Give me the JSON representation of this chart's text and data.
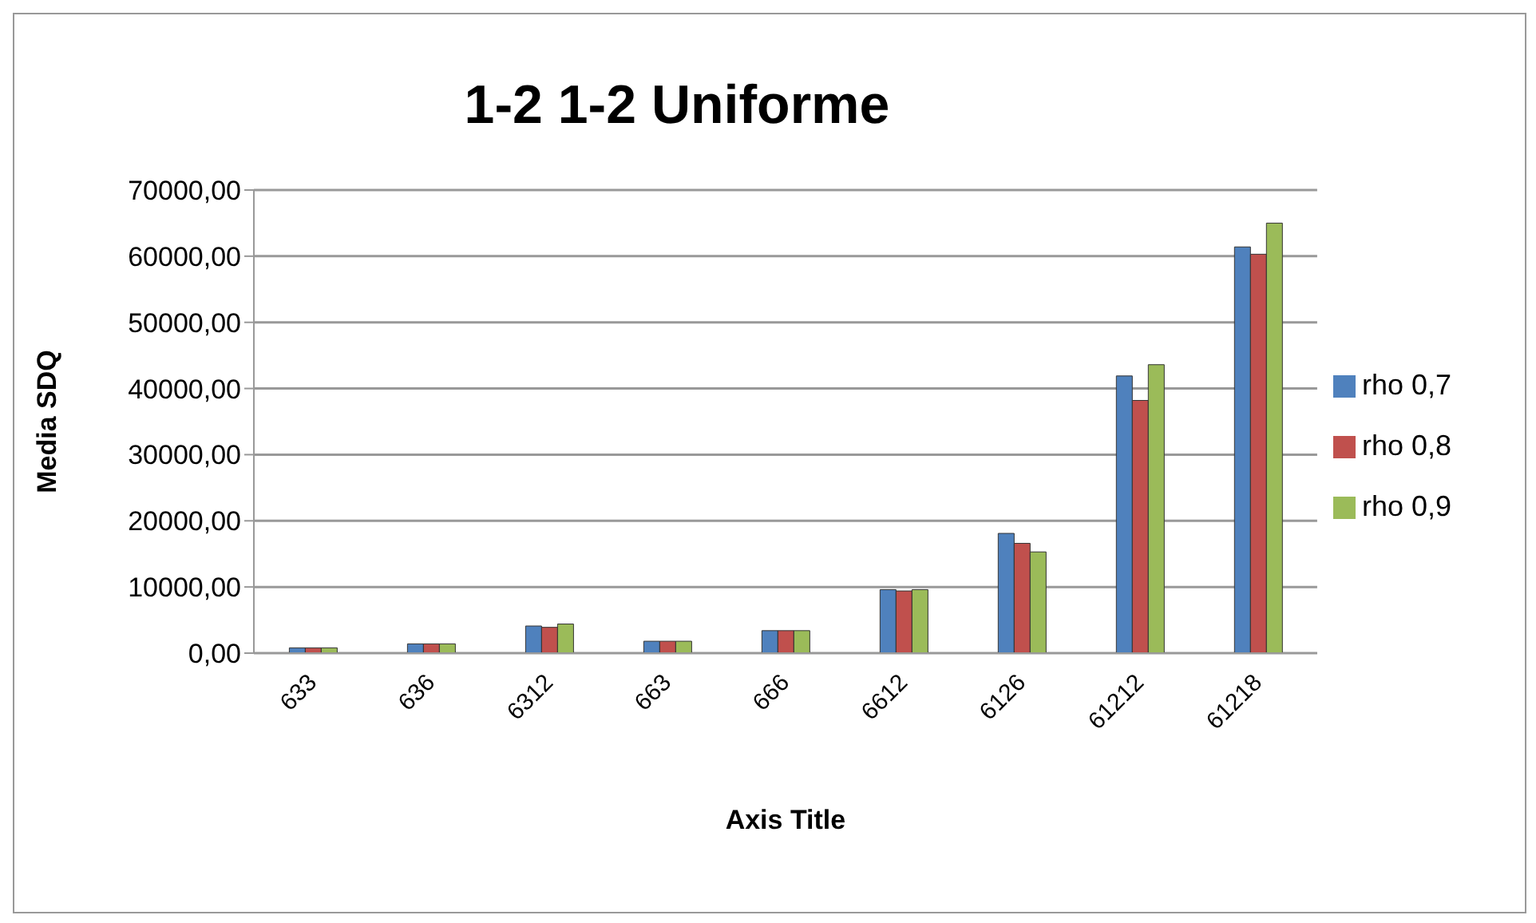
{
  "chart_data": {
    "type": "bar",
    "title": "1-2 1-2 Uniforme",
    "xlabel": "Axis Title",
    "ylabel": "Media SDQ",
    "categories": [
      "633",
      "636",
      "6312",
      "663",
      "666",
      "6612",
      "6126",
      "61212",
      "61218"
    ],
    "series": [
      {
        "name": "rho 0,7",
        "color": "#4f81bd",
        "values": [
          800,
          1400,
          4100,
          1800,
          3400,
          9600,
          18100,
          41900,
          61400
        ]
      },
      {
        "name": "rho 0,8",
        "color": "#c0504d",
        "values": [
          800,
          1400,
          3900,
          1800,
          3400,
          9400,
          16600,
          38200,
          60300
        ]
      },
      {
        "name": "rho 0,9",
        "color": "#9bbb59",
        "values": [
          800,
          1400,
          4400,
          1800,
          3400,
          9600,
          15300,
          43600,
          65000
        ]
      }
    ],
    "ylim": [
      0,
      70000
    ],
    "yticks": [
      {
        "value": 0,
        "label": "0,00"
      },
      {
        "value": 10000,
        "label": "10000,00"
      },
      {
        "value": 20000,
        "label": "20000,00"
      },
      {
        "value": 30000,
        "label": "30000,00"
      },
      {
        "value": 40000,
        "label": "40000,00"
      },
      {
        "value": 50000,
        "label": "50000,00"
      },
      {
        "value": 60000,
        "label": "60000,00"
      },
      {
        "value": 70000,
        "label": "70000,00"
      }
    ],
    "grid": "y",
    "legend": "right"
  }
}
